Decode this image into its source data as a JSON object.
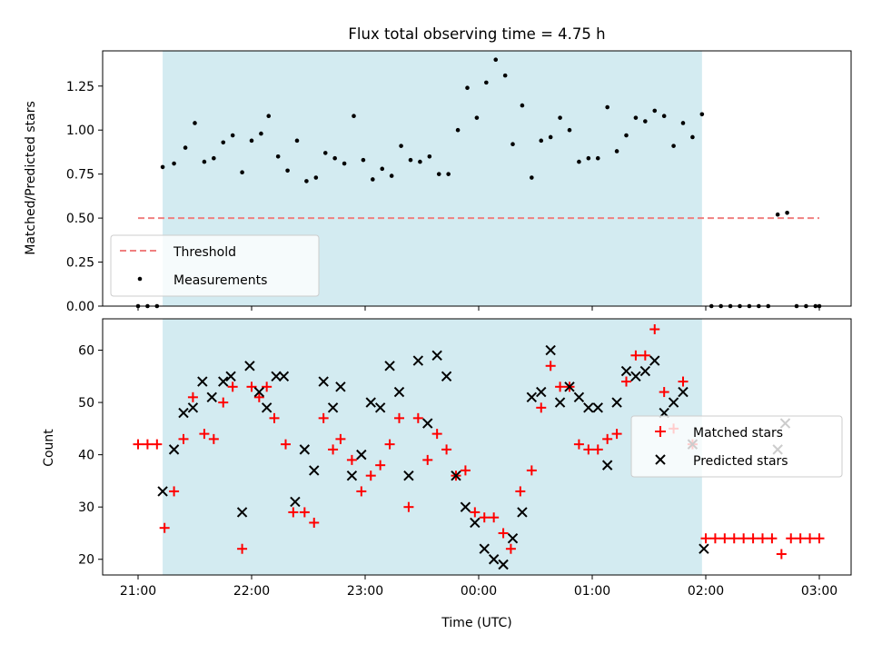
{
  "chart_data": [
    {
      "type": "scatter",
      "title": "Flux total observing time = 4.75 h",
      "ylabel": "Matched/Predicted stars",
      "xlabel": "",
      "x_ticks": [
        "21:00",
        "22:00",
        "23:00",
        "00:00",
        "01:00",
        "02:00",
        "03:00"
      ],
      "ylim": [
        0,
        1.45
      ],
      "y_ticks": [
        "0.00",
        "0.25",
        "0.50",
        "0.75",
        "1.00",
        "1.25"
      ],
      "shaded_span": {
        "start": "21:13",
        "end": "01:58",
        "color": "#d3ebf1"
      },
      "threshold": {
        "name": "Threshold",
        "value": 0.5,
        "color": "#f08080"
      },
      "legend_position": "lower-left",
      "series": [
        {
          "name": "Measurements",
          "color": "#000000",
          "points": [
            [
              "21:00",
              0
            ],
            [
              "21:05",
              0
            ],
            [
              "21:10",
              0
            ],
            [
              "21:13",
              0.79
            ],
            [
              "21:19",
              0.81
            ],
            [
              "21:25",
              0.9
            ],
            [
              "21:30",
              1.04
            ],
            [
              "21:35",
              0.82
            ],
            [
              "21:40",
              0.84
            ],
            [
              "21:45",
              0.93
            ],
            [
              "21:50",
              0.97
            ],
            [
              "21:55",
              0.76
            ],
            [
              "22:00",
              0.94
            ],
            [
              "22:05",
              0.98
            ],
            [
              "22:09",
              1.08
            ],
            [
              "22:14",
              0.85
            ],
            [
              "22:19",
              0.77
            ],
            [
              "22:24",
              0.94
            ],
            [
              "22:29",
              0.71
            ],
            [
              "22:34",
              0.73
            ],
            [
              "22:39",
              0.87
            ],
            [
              "22:44",
              0.84
            ],
            [
              "22:49",
              0.81
            ],
            [
              "22:54",
              1.08
            ],
            [
              "22:59",
              0.83
            ],
            [
              "23:04",
              0.72
            ],
            [
              "23:09",
              0.78
            ],
            [
              "23:14",
              0.74
            ],
            [
              "23:19",
              0.91
            ],
            [
              "23:24",
              0.83
            ],
            [
              "23:29",
              0.82
            ],
            [
              "23:34",
              0.85
            ],
            [
              "23:39",
              0.75
            ],
            [
              "23:44",
              0.75
            ],
            [
              "23:49",
              1.0
            ],
            [
              "23:54",
              1.24
            ],
            [
              "23:59",
              1.07
            ],
            [
              "00:04",
              1.27
            ],
            [
              "00:09",
              1.4
            ],
            [
              "00:14",
              1.31
            ],
            [
              "00:18",
              0.92
            ],
            [
              "00:23",
              1.14
            ],
            [
              "00:28",
              0.73
            ],
            [
              "00:33",
              0.94
            ],
            [
              "00:38",
              0.96
            ],
            [
              "00:43",
              1.07
            ],
            [
              "00:48",
              1.0
            ],
            [
              "00:53",
              0.82
            ],
            [
              "00:58",
              0.84
            ],
            [
              "01:03",
              0.84
            ],
            [
              "01:08",
              1.13
            ],
            [
              "01:13",
              0.88
            ],
            [
              "01:18",
              0.97
            ],
            [
              "01:23",
              1.07
            ],
            [
              "01:28",
              1.05
            ],
            [
              "01:33",
              1.11
            ],
            [
              "01:38",
              1.08
            ],
            [
              "01:43",
              0.91
            ],
            [
              "01:48",
              1.04
            ],
            [
              "01:53",
              0.96
            ],
            [
              "01:58",
              1.09
            ],
            [
              "02:03",
              0
            ],
            [
              "02:08",
              0
            ],
            [
              "02:13",
              0
            ],
            [
              "02:18",
              0
            ],
            [
              "02:23",
              0
            ],
            [
              "02:28",
              0
            ],
            [
              "02:33",
              0
            ],
            [
              "02:38",
              0.52
            ],
            [
              "02:43",
              0.53
            ],
            [
              "02:48",
              0
            ],
            [
              "02:53",
              0
            ],
            [
              "02:58",
              0
            ],
            [
              "03:00",
              0
            ]
          ]
        }
      ]
    },
    {
      "type": "scatter",
      "title": "",
      "xlabel": "Time (UTC)",
      "ylabel": "Count",
      "x_ticks": [
        "21:00",
        "22:00",
        "23:00",
        "00:00",
        "01:00",
        "02:00",
        "03:00"
      ],
      "ylim": [
        17,
        66
      ],
      "y_ticks": [
        "20",
        "30",
        "40",
        "50",
        "60"
      ],
      "shaded_span": {
        "start": "21:13",
        "end": "01:58",
        "color": "#d3ebf1"
      },
      "legend_position": "center-right",
      "series": [
        {
          "name": "Matched stars",
          "marker": "plus",
          "color": "#ff0000",
          "points": [
            [
              "21:00",
              42
            ],
            [
              "21:05",
              42
            ],
            [
              "21:10",
              42
            ],
            [
              "21:14",
              26
            ],
            [
              "21:19",
              33
            ],
            [
              "21:24",
              43
            ],
            [
              "21:29",
              51
            ],
            [
              "21:35",
              44
            ],
            [
              "21:40",
              43
            ],
            [
              "21:45",
              50
            ],
            [
              "21:50",
              53
            ],
            [
              "21:55",
              22
            ],
            [
              "22:00",
              53
            ],
            [
              "22:04",
              51
            ],
            [
              "22:08",
              53
            ],
            [
              "22:12",
              47
            ],
            [
              "22:18",
              42
            ],
            [
              "22:22",
              29
            ],
            [
              "22:28",
              29
            ],
            [
              "22:33",
              27
            ],
            [
              "22:38",
              47
            ],
            [
              "22:43",
              41
            ],
            [
              "22:47",
              43
            ],
            [
              "22:53",
              39
            ],
            [
              "22:58",
              33
            ],
            [
              "23:03",
              36
            ],
            [
              "23:08",
              38
            ],
            [
              "23:13",
              42
            ],
            [
              "23:18",
              47
            ],
            [
              "23:23",
              30
            ],
            [
              "23:28",
              47
            ],
            [
              "23:33",
              39
            ],
            [
              "23:38",
              44
            ],
            [
              "23:43",
              41
            ],
            [
              "23:48",
              36
            ],
            [
              "23:53",
              37
            ],
            [
              "23:58",
              29
            ],
            [
              "00:03",
              28
            ],
            [
              "00:08",
              28
            ],
            [
              "00:13",
              25
            ],
            [
              "00:17",
              22
            ],
            [
              "00:22",
              33
            ],
            [
              "00:28",
              37
            ],
            [
              "00:33",
              49
            ],
            [
              "00:38",
              57
            ],
            [
              "00:43",
              53
            ],
            [
              "00:48",
              53
            ],
            [
              "00:53",
              42
            ],
            [
              "00:58",
              41
            ],
            [
              "01:03",
              41
            ],
            [
              "01:08",
              43
            ],
            [
              "01:13",
              44
            ],
            [
              "01:18",
              54
            ],
            [
              "01:23",
              59
            ],
            [
              "01:28",
              59
            ],
            [
              "01:33",
              64
            ],
            [
              "01:38",
              52
            ],
            [
              "01:43",
              45
            ],
            [
              "01:48",
              54
            ],
            [
              "01:53",
              42
            ],
            [
              "02:00",
              24
            ],
            [
              "02:05",
              24
            ],
            [
              "02:10",
              24
            ],
            [
              "02:15",
              24
            ],
            [
              "02:20",
              24
            ],
            [
              "02:25",
              24
            ],
            [
              "02:30",
              24
            ],
            [
              "02:35",
              24
            ],
            [
              "02:40",
              21
            ],
            [
              "02:45",
              24
            ],
            [
              "02:50",
              24
            ],
            [
              "02:55",
              24
            ],
            [
              "03:00",
              24
            ]
          ]
        },
        {
          "name": "Predicted stars",
          "marker": "x",
          "color": "#000000",
          "points": [
            [
              "21:13",
              33
            ],
            [
              "21:19",
              41
            ],
            [
              "21:24",
              48
            ],
            [
              "21:29",
              49
            ],
            [
              "21:34",
              54
            ],
            [
              "21:39",
              51
            ],
            [
              "21:45",
              54
            ],
            [
              "21:49",
              55
            ],
            [
              "21:55",
              29
            ],
            [
              "21:59",
              57
            ],
            [
              "22:04",
              52
            ],
            [
              "22:08",
              49
            ],
            [
              "22:13",
              55
            ],
            [
              "22:17",
              55
            ],
            [
              "22:23",
              31
            ],
            [
              "22:28",
              41
            ],
            [
              "22:33",
              37
            ],
            [
              "22:38",
              54
            ],
            [
              "22:43",
              49
            ],
            [
              "22:47",
              53
            ],
            [
              "22:53",
              36
            ],
            [
              "22:58",
              40
            ],
            [
              "23:03",
              50
            ],
            [
              "23:08",
              49
            ],
            [
              "23:13",
              57
            ],
            [
              "23:18",
              52
            ],
            [
              "23:23",
              36
            ],
            [
              "23:28",
              58
            ],
            [
              "23:33",
              46
            ],
            [
              "23:38",
              59
            ],
            [
              "23:43",
              55
            ],
            [
              "23:48",
              36
            ],
            [
              "23:53",
              30
            ],
            [
              "23:58",
              27
            ],
            [
              "00:03",
              22
            ],
            [
              "00:08",
              20
            ],
            [
              "00:13",
              19
            ],
            [
              "00:18",
              24
            ],
            [
              "00:23",
              29
            ],
            [
              "00:28",
              51
            ],
            [
              "00:33",
              52
            ],
            [
              "00:38",
              60
            ],
            [
              "00:43",
              50
            ],
            [
              "00:48",
              53
            ],
            [
              "00:53",
              51
            ],
            [
              "00:58",
              49
            ],
            [
              "01:03",
              49
            ],
            [
              "01:08",
              38
            ],
            [
              "01:13",
              50
            ],
            [
              "01:18",
              56
            ],
            [
              "01:23",
              55
            ],
            [
              "01:28",
              56
            ],
            [
              "01:33",
              58
            ],
            [
              "01:38",
              48
            ],
            [
              "01:43",
              50
            ],
            [
              "01:48",
              52
            ],
            [
              "01:53",
              42
            ],
            [
              "01:59",
              22
            ],
            [
              "02:38",
              41
            ],
            [
              "02:42",
              46
            ]
          ]
        }
      ]
    }
  ]
}
